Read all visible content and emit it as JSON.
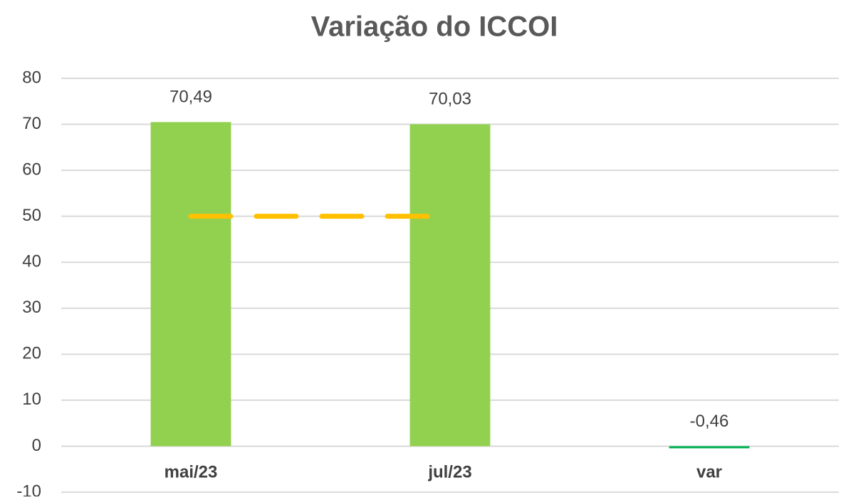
{
  "chart_data": {
    "type": "bar",
    "title": "Variação do ICCOI",
    "categories": [
      "mai/23",
      "jul/23",
      "var"
    ],
    "series": [
      {
        "type": "bar",
        "values": [
          70.49,
          70.03,
          -0.46
        ],
        "value_labels": [
          "70,49",
          "70,03",
          "-0,46"
        ],
        "colors": [
          "#92d050",
          "#92d050",
          "#00b050"
        ]
      },
      {
        "type": "line",
        "values": [
          50,
          50,
          null
        ],
        "color": "#ffc000",
        "dashed": true
      }
    ],
    "ylim": [
      -10,
      80
    ],
    "yticks": [
      -10,
      0,
      10,
      20,
      30,
      40,
      50,
      60,
      70,
      80
    ],
    "grid": true
  }
}
